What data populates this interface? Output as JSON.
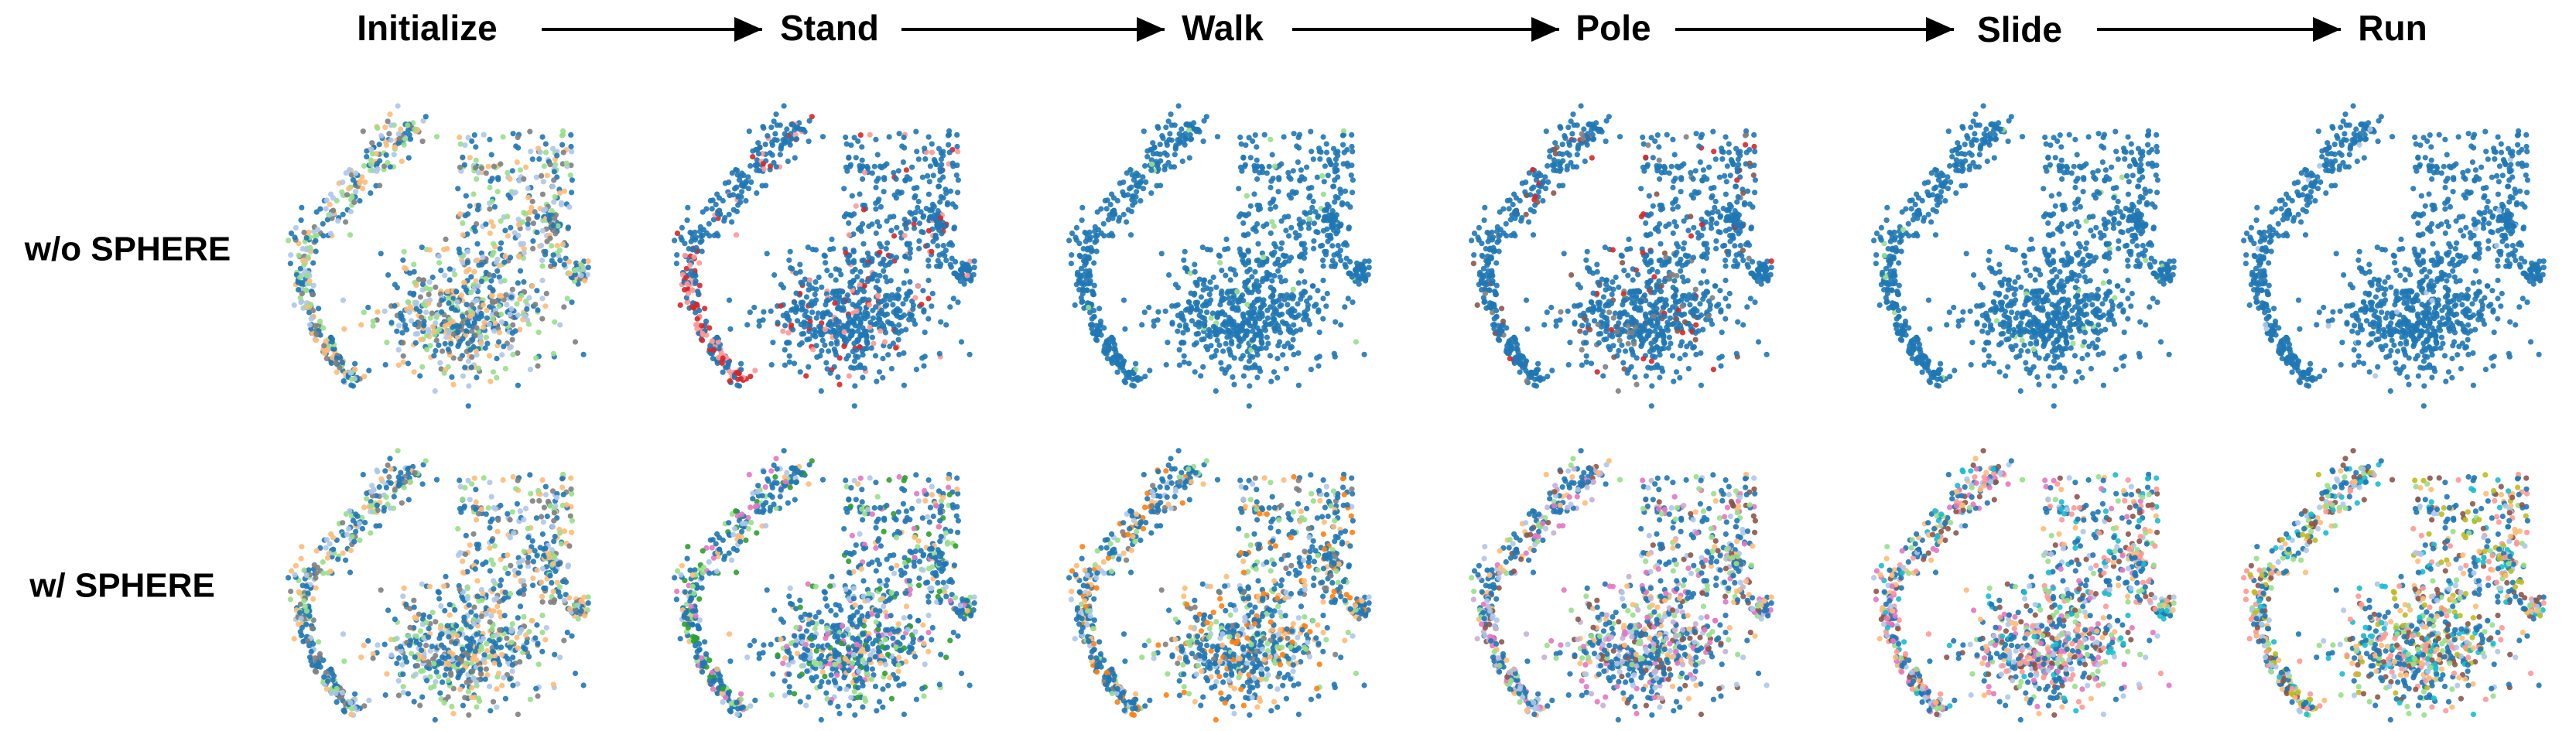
{
  "stages": [
    "Initialize",
    "Stand",
    "Walk",
    "Pole",
    "Slide",
    "Run"
  ],
  "rows": [
    "w/o SPHERE",
    "w/ SPHERE"
  ]
}
